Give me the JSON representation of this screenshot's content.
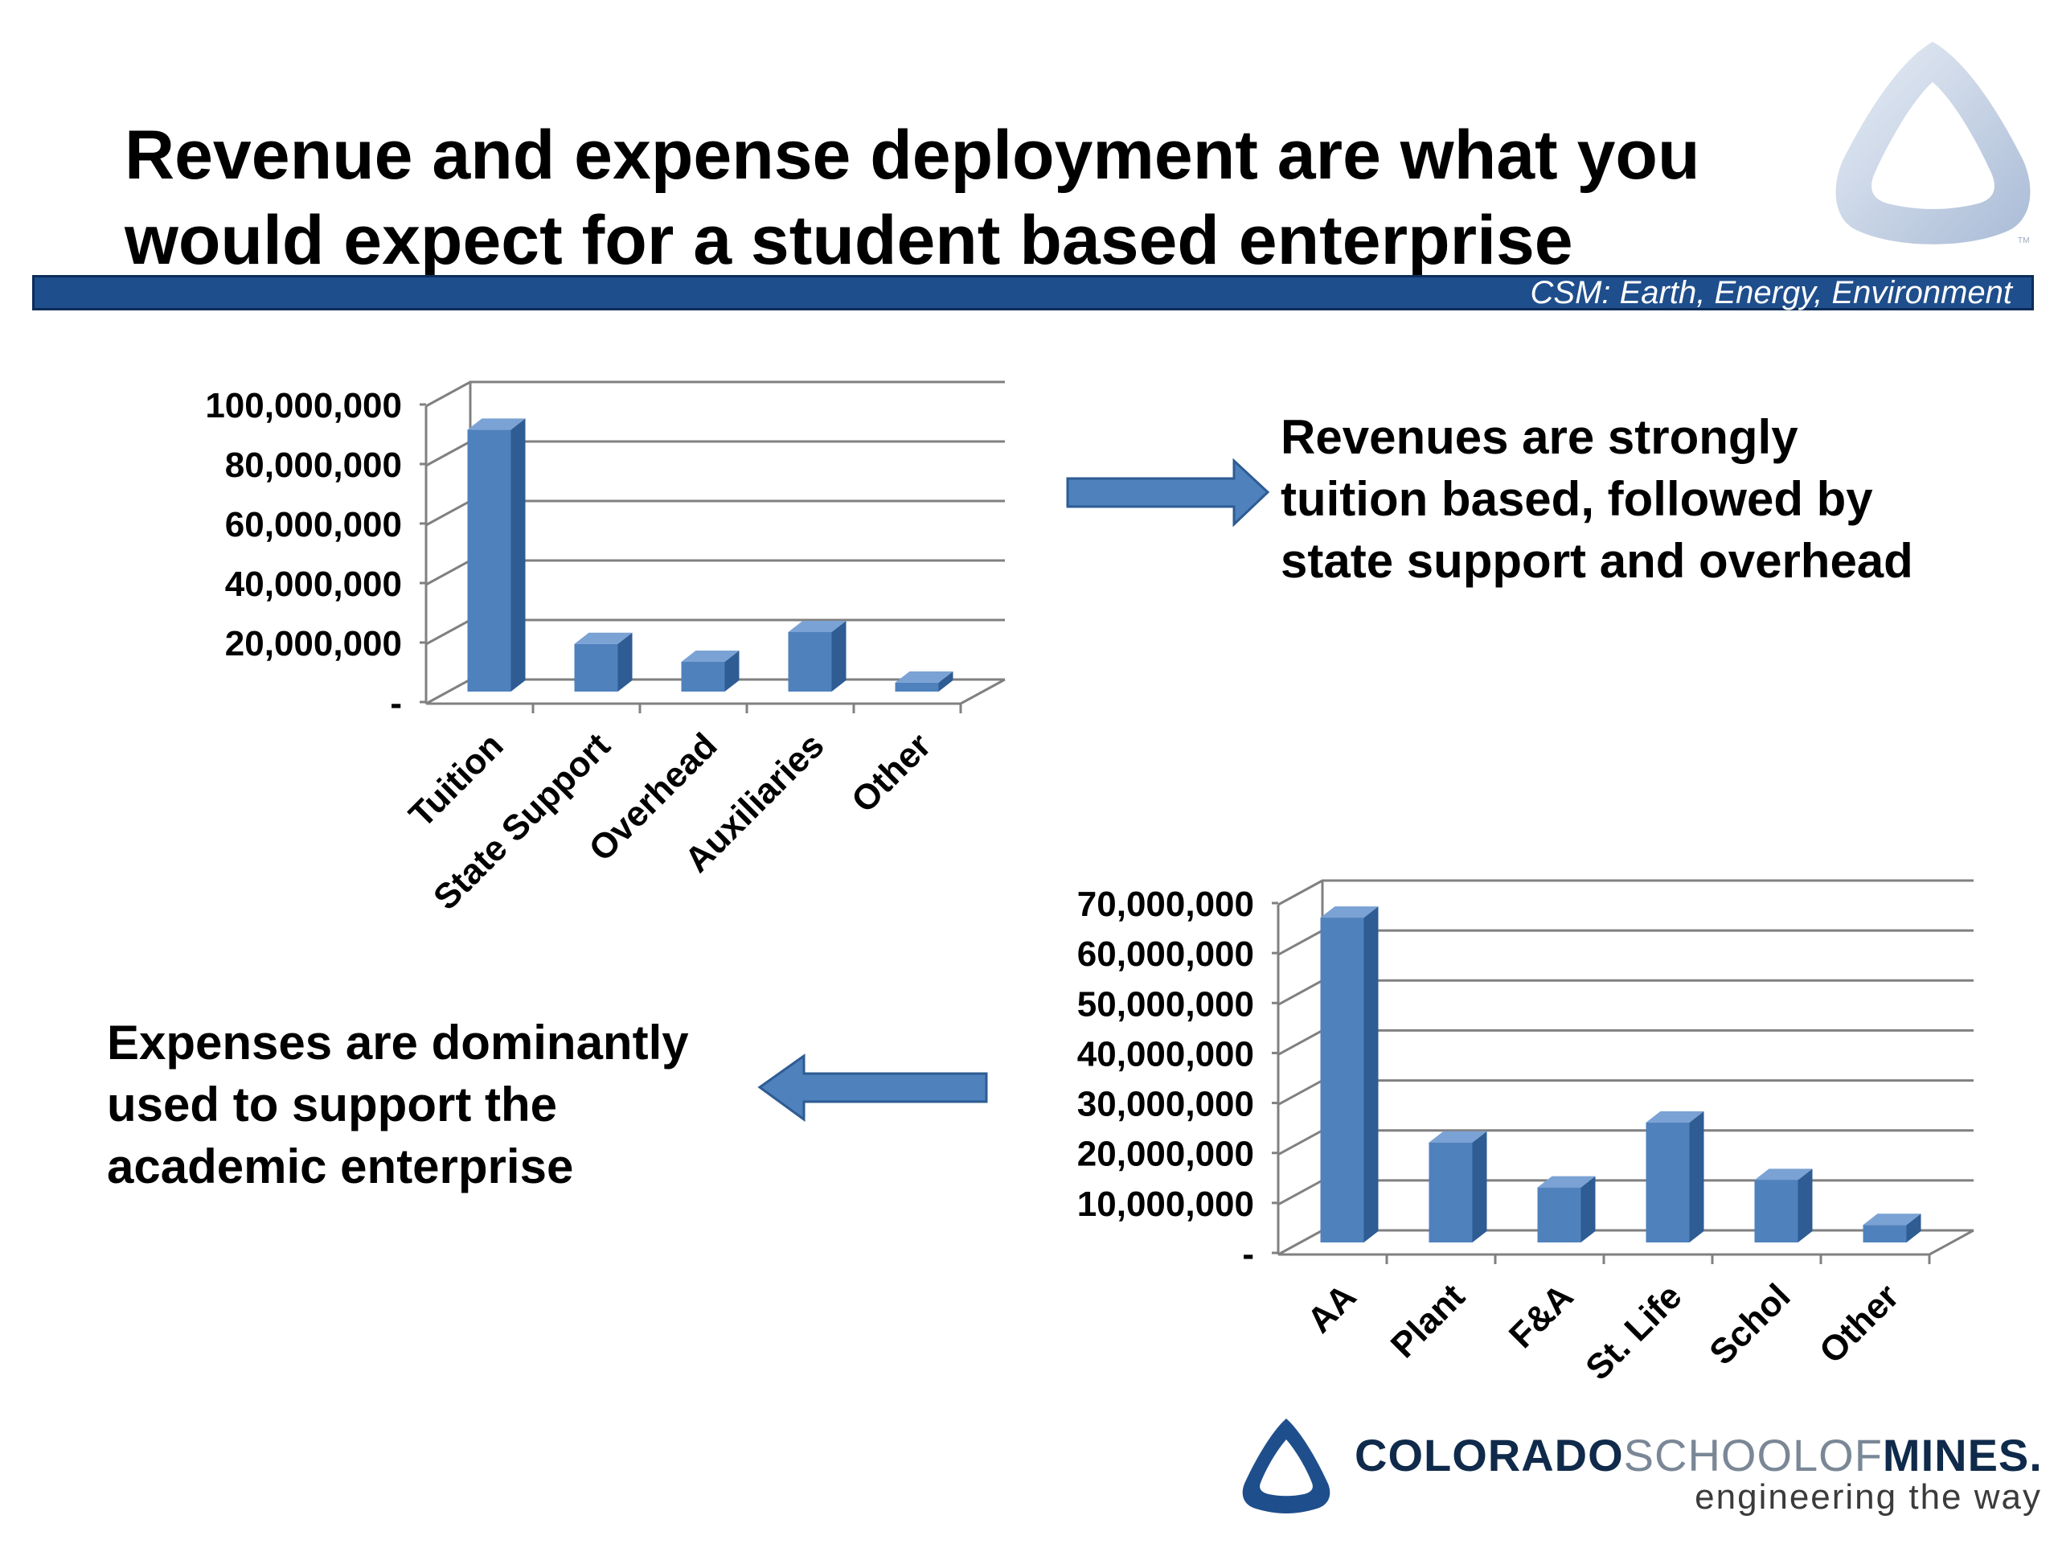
{
  "slide": {
    "title_lines": [
      "Revenue and expense deployment are what you",
      "would expect for a student based enterprise"
    ],
    "tagline": "CSM: Earth, Energy, Environment"
  },
  "callouts": {
    "revenue_lines": [
      "Revenues are strongly",
      "tuition based, followed by",
      "state support and overhead"
    ],
    "expenses_lines": [
      "Expenses are dominantly",
      "used to support the",
      "academic enterprise"
    ]
  },
  "footer": {
    "brand_parts": [
      "COLORADO",
      "SCHOOLOF",
      "MINES",
      "."
    ],
    "brand_tagline": "engineering the way"
  },
  "colors": {
    "bar_front": "#4f81bd",
    "bar_side": "#2e5c93",
    "bar_top": "#7ba2d4",
    "header_bar": "#1f4e8c",
    "arrow": "#4f81bd",
    "grid": "#808080"
  },
  "icons": {
    "logo": "mines-triangle-logo",
    "arrows": [
      "arrow-right-icon",
      "arrow-left-icon"
    ]
  },
  "chart_data": [
    {
      "type": "bar",
      "title": "",
      "xlabel": "",
      "ylabel": "",
      "categories": [
        "Tuition",
        "State Support",
        "Overhead",
        "Auxiliaries",
        "Other"
      ],
      "values": [
        88000000,
        16000000,
        10000000,
        20000000,
        3000000
      ],
      "ylim": [
        0,
        100000000
      ],
      "yticks": [
        "-",
        "20,000,000",
        "40,000,000",
        "60,000,000",
        "80,000,000",
        "100,000,000"
      ],
      "grid": true,
      "legend": "none"
    },
    {
      "type": "bar",
      "title": "",
      "xlabel": "",
      "ylabel": "",
      "categories": [
        "AA",
        "Plant",
        "F&A",
        "St. Life",
        "Schol",
        "Other"
      ],
      "values": [
        65000000,
        20000000,
        11000000,
        24000000,
        12500000,
        3500000
      ],
      "ylim": [
        0,
        70000000
      ],
      "yticks": [
        "-",
        "10,000,000",
        "20,000,000",
        "30,000,000",
        "40,000,000",
        "50,000,000",
        "60,000,000",
        "70,000,000"
      ],
      "grid": true,
      "legend": "none"
    }
  ]
}
